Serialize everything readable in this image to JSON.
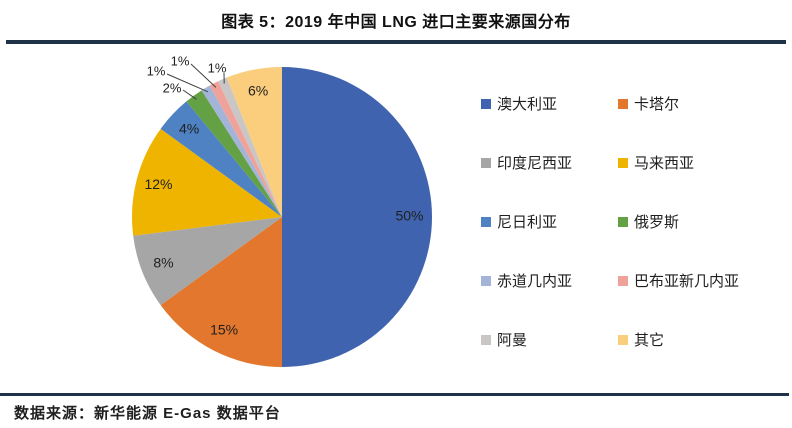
{
  "header": {
    "title": "图表 5：2019 年中国 LNG 进口主要来源国分布"
  },
  "footer": {
    "source": "数据来源：新华能源 E-Gas 数据平台"
  },
  "theme": {
    "rule_color": "#1e3347",
    "label_color": "#1f1f1f",
    "background": "#ffffff"
  },
  "chart_data": {
    "type": "pie",
    "title": "图表 5：2019 年中国 LNG 进口主要来源国分布",
    "categories": [
      "澳大利亚",
      "卡塔尔",
      "印度尼西亚",
      "马来西亚",
      "尼日利亚",
      "俄罗斯",
      "赤道几内亚",
      "巴布亚新几内亚",
      "阿曼",
      "其它"
    ],
    "keys": [
      "australia",
      "qatar",
      "indonesia",
      "malaysia",
      "nigeria",
      "russia",
      "equatorial-guinea",
      "papua-new-guinea",
      "oman",
      "others"
    ],
    "values": [
      50,
      15,
      8,
      12,
      4,
      2,
      1,
      1,
      1,
      6
    ],
    "labels": [
      "50%",
      "15%",
      "8%",
      "12%",
      "4%",
      "2%",
      "1%",
      "1%",
      "1%",
      "6%"
    ],
    "colors": [
      "#3f63ae",
      "#e2772d",
      "#a6a6a6",
      "#eeb400",
      "#4e82c2",
      "#64a144",
      "#a2b4d8",
      "#efa29a",
      "#c9c6c5",
      "#fbce7e"
    ],
    "start_angle": 0,
    "direction": "clockwise",
    "legend_position": "right",
    "source": "数据来源：新华能源 E-Gas 数据平台"
  }
}
